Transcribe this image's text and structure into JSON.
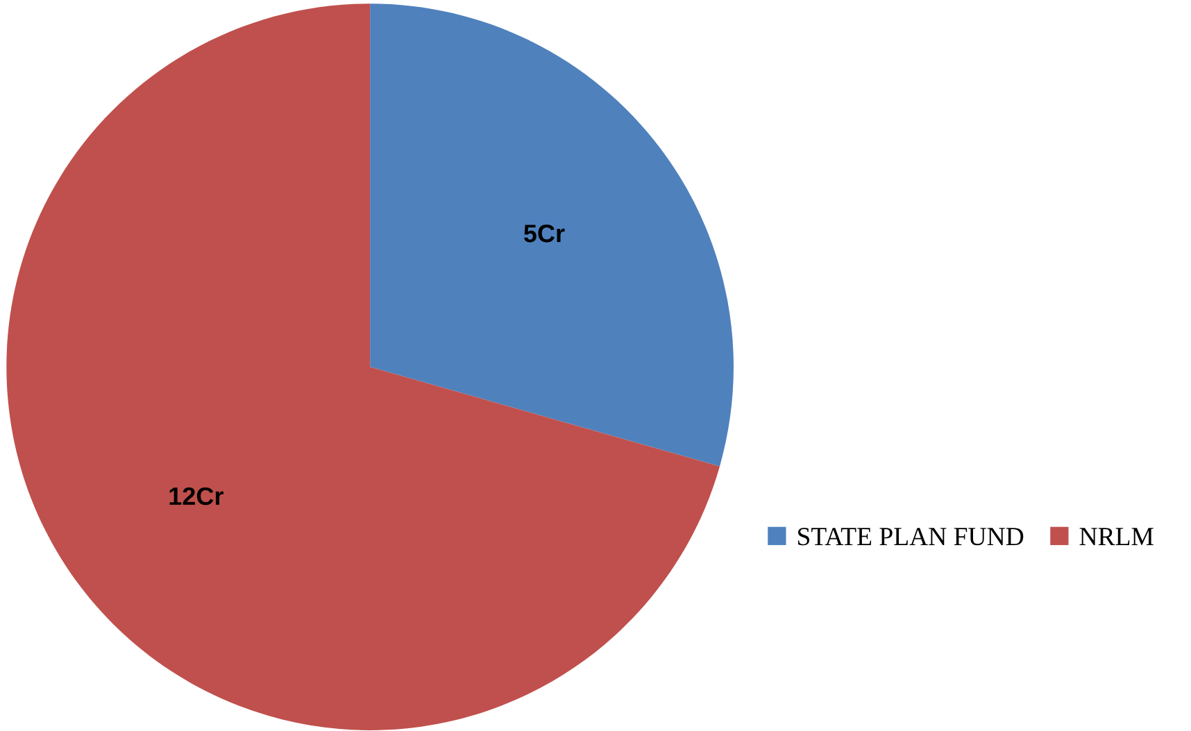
{
  "chart_data": {
    "type": "pie",
    "categories": [
      "STATE PLAN FUND",
      "NRLM"
    ],
    "values": [
      5,
      12
    ],
    "colors": [
      "#4f81bd",
      "#c0504d"
    ],
    "value_labels": [
      "5Cr",
      "12Cr"
    ],
    "legend": "right"
  }
}
